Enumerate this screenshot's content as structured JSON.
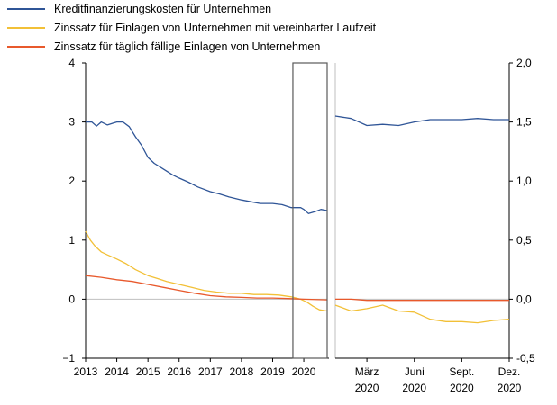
{
  "colors": {
    "blue": "#2f5597",
    "yellow": "#f2c037",
    "orange": "#e8592c",
    "axis": "#000000",
    "zero": "#bfbfbf",
    "box": "#595959"
  },
  "legend": [
    {
      "label": "Kreditfinanzierungskosten für Unternehmen",
      "color": "#2f5597"
    },
    {
      "label": "Zinssatz für Einlagen von Unternehmen mit vereinbarter Laufzeit",
      "color": "#f2c037"
    },
    {
      "label": "Zinssatz für täglich fällige Einlagen von Unternehmen",
      "color": "#e8592c"
    }
  ],
  "chart_data": [
    {
      "type": "line",
      "panel": "left",
      "ylim": [
        -1,
        4
      ],
      "yticks": [
        "4",
        "3",
        "2",
        "1",
        "0",
        "−1"
      ],
      "xlim": [
        2013.0,
        2020.75
      ],
      "xticks": [
        "2013",
        "2014",
        "2015",
        "2016",
        "2017",
        "2018",
        "2019",
        "2020"
      ],
      "highlight_range": [
        2019.65,
        2020.75
      ],
      "series": [
        {
          "name": "Kreditfinanzierungskosten für Unternehmen",
          "color": "#2f5597",
          "x": [
            2013.0,
            2013.2,
            2013.35,
            2013.5,
            2013.7,
            2014.0,
            2014.2,
            2014.4,
            2014.6,
            2014.8,
            2015.0,
            2015.2,
            2015.5,
            2015.8,
            2016.0,
            2016.3,
            2016.6,
            2017.0,
            2017.3,
            2017.6,
            2018.0,
            2018.3,
            2018.6,
            2019.0,
            2019.3,
            2019.6,
            2019.9,
            2020.0,
            2020.15,
            2020.35,
            2020.55,
            2020.75
          ],
          "y": [
            3.0,
            3.0,
            2.93,
            3.0,
            2.95,
            3.0,
            3.0,
            2.92,
            2.75,
            2.6,
            2.4,
            2.3,
            2.2,
            2.1,
            2.05,
            1.98,
            1.9,
            1.82,
            1.78,
            1.73,
            1.68,
            1.65,
            1.62,
            1.62,
            1.6,
            1.55,
            1.55,
            1.52,
            1.45,
            1.48,
            1.52,
            1.5
          ]
        },
        {
          "name": "Zinssatz für Einlagen von Unternehmen mit vereinbarter Laufzeit",
          "color": "#f2c037",
          "x": [
            2013.0,
            2013.15,
            2013.3,
            2013.5,
            2013.7,
            2014.0,
            2014.3,
            2014.6,
            2015.0,
            2015.3,
            2015.6,
            2016.0,
            2016.4,
            2016.8,
            2017.2,
            2017.6,
            2018.0,
            2018.4,
            2018.8,
            2019.2,
            2019.6,
            2019.9,
            2020.1,
            2020.3,
            2020.5,
            2020.75
          ],
          "y": [
            1.15,
            1.0,
            0.9,
            0.8,
            0.75,
            0.68,
            0.6,
            0.5,
            0.4,
            0.35,
            0.3,
            0.25,
            0.2,
            0.15,
            0.12,
            0.1,
            0.1,
            0.08,
            0.08,
            0.07,
            0.04,
            0.0,
            -0.05,
            -0.12,
            -0.18,
            -0.2
          ]
        },
        {
          "name": "Zinssatz für täglich fällige Einlagen von Unternehmen",
          "color": "#e8592c",
          "x": [
            2013.0,
            2013.5,
            2014.0,
            2014.5,
            2015.0,
            2015.5,
            2016.0,
            2016.5,
            2017.0,
            2017.5,
            2018.0,
            2018.5,
            2019.0,
            2019.5,
            2020.0,
            2020.75
          ],
          "y": [
            0.4,
            0.37,
            0.33,
            0.3,
            0.25,
            0.2,
            0.15,
            0.1,
            0.06,
            0.04,
            0.03,
            0.02,
            0.02,
            0.01,
            0.0,
            -0.01
          ]
        }
      ]
    },
    {
      "type": "line",
      "panel": "right",
      "ylim": [
        -0.5,
        2.0
      ],
      "yticks": [
        "2,0",
        "1,5",
        "1,0",
        "0,5",
        "0,0",
        "-0,5"
      ],
      "xlim": [
        0,
        11
      ],
      "xticks": [
        {
          "month": "März",
          "year": "2020",
          "x": 2
        },
        {
          "month": "Juni",
          "year": "2020",
          "x": 5
        },
        {
          "month": "Sept.",
          "year": "2020",
          "x": 8
        },
        {
          "month": "Dez.",
          "year": "2020",
          "x": 11
        }
      ],
      "series": [
        {
          "name": "Kreditfinanzierungskosten für Unternehmen",
          "color": "#2f5597",
          "x": [
            0,
            1,
            2,
            3,
            4,
            5,
            6,
            7,
            8,
            9,
            10,
            11
          ],
          "y": [
            1.55,
            1.53,
            1.47,
            1.48,
            1.47,
            1.5,
            1.52,
            1.52,
            1.52,
            1.53,
            1.52,
            1.52
          ]
        },
        {
          "name": "Zinssatz für Einlagen von Unternehmen mit vereinbarter Laufzeit",
          "color": "#f2c037",
          "x": [
            0,
            1,
            2,
            3,
            4,
            5,
            6,
            7,
            8,
            9,
            10,
            11
          ],
          "y": [
            -0.05,
            -0.1,
            -0.08,
            -0.05,
            -0.1,
            -0.11,
            -0.17,
            -0.19,
            -0.19,
            -0.2,
            -0.18,
            -0.17
          ]
        },
        {
          "name": "Zinssatz für täglich fällige Einlagen von Unternehmen",
          "color": "#e8592c",
          "x": [
            0,
            1,
            2,
            3,
            4,
            5,
            6,
            7,
            8,
            9,
            10,
            11
          ],
          "y": [
            0.0,
            0.0,
            -0.01,
            -0.01,
            -0.01,
            -0.01,
            -0.01,
            -0.01,
            -0.01,
            -0.01,
            -0.01,
            -0.01
          ]
        }
      ]
    }
  ]
}
